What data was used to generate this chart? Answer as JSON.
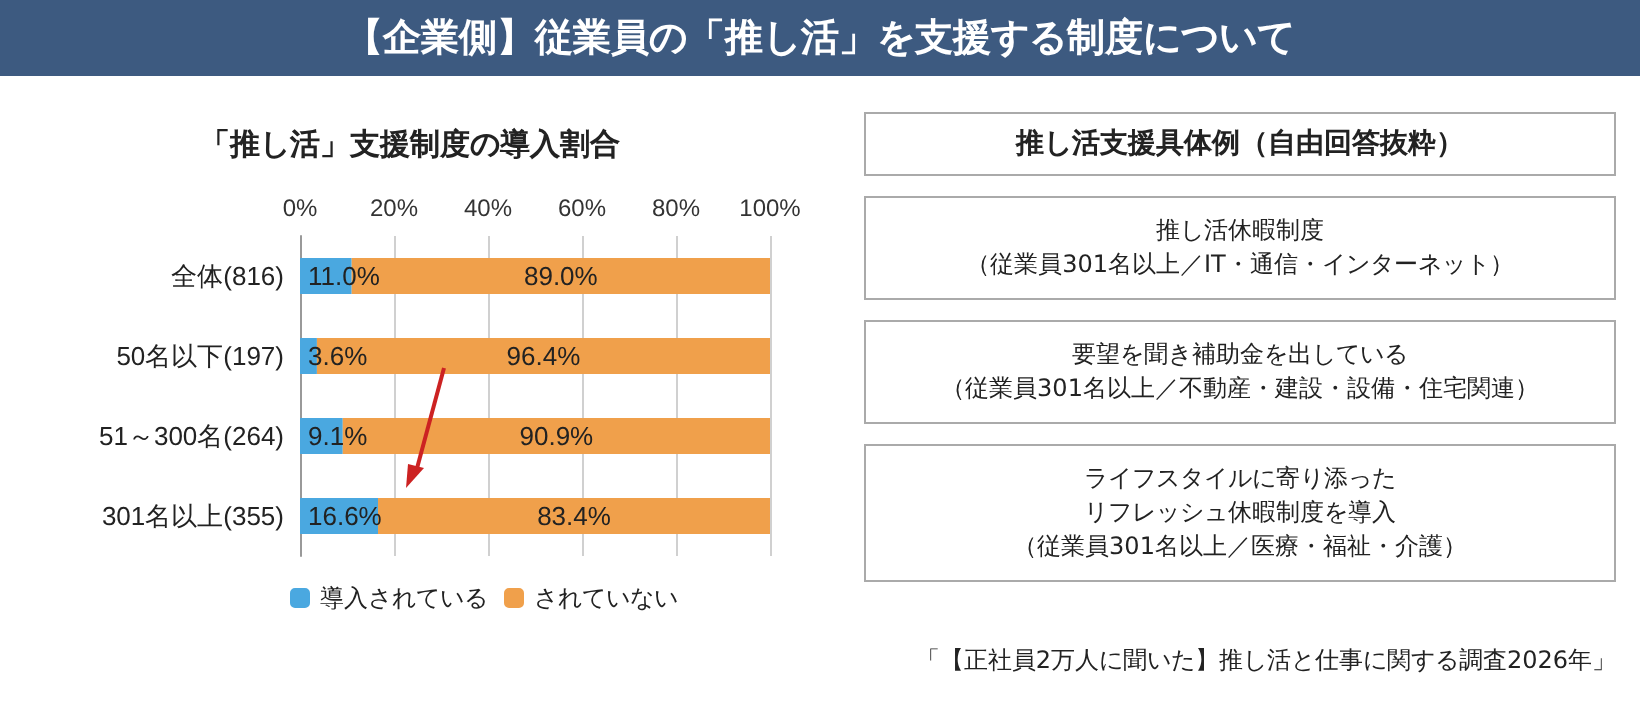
{
  "chart_data": [
    {
      "type": "bar",
      "title": "【企業側】従業員の「推し活」を支援する制度について",
      "subtitle": "「推し活」支援制度の導入割合",
      "orientation": "horizontal",
      "stacked": true,
      "categories": [
        "全体(816)",
        "50名以下(197)",
        "51～300名(264)",
        "301名以上(355)"
      ],
      "series": [
        {
          "name": "導入されている",
          "color": "#4aa8e0",
          "values": [
            11.0,
            3.6,
            9.1,
            16.6
          ],
          "value_labels": [
            "11.0%",
            "3.6%",
            "9.1%",
            "16.6%"
          ]
        },
        {
          "name": "されていない",
          "color": "#f0a04b",
          "values": [
            89.0,
            96.4,
            90.9,
            83.4
          ],
          "value_labels": [
            "89.0%",
            "96.4%",
            "90.9%",
            "83.4%"
          ]
        }
      ],
      "xlim": [
        0,
        100
      ],
      "xticks": [
        {
          "value": 0,
          "label": "0%"
        },
        {
          "value": 20,
          "label": "20%"
        },
        {
          "value": 40,
          "label": "40%"
        },
        {
          "value": 60,
          "label": "60%"
        },
        {
          "value": 80,
          "label": "80%"
        },
        {
          "value": 100,
          "label": "100%"
        }
      ],
      "grid": "x",
      "legend": "bottom left",
      "annotations": [
        "「【正社員2万人に聞いた】推し活と仕事に関する調査2026年」"
      ]
    },
    {
      "type": "other",
      "title": "推し活支援具体例（自由回答抜粋）"
    },
    {
      "type": "other",
      "annotations": [
        "推し活休暇制度",
        "（従業員301名以上／IT・通信・インターネット）"
      ]
    },
    {
      "type": "other",
      "annotations": [
        "要望を聞き補助金を出している",
        "（従業員301名以上／不動産・建設・設備・住宅関連）"
      ]
    },
    {
      "type": "other",
      "annotations": [
        "ライフスタイルに寄り添った",
        "リフレッシュ休暇制度を導入",
        "（従業員301名以上／医療・福祉・介護）"
      ]
    }
  ]
}
